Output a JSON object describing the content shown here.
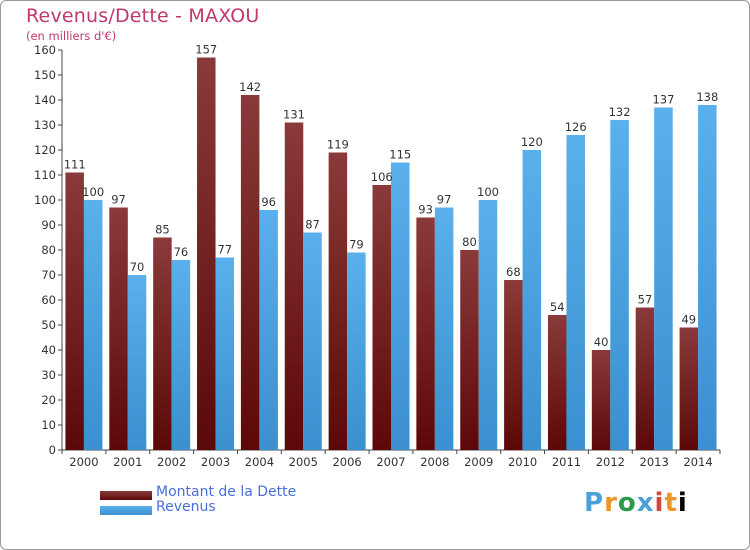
{
  "header": {
    "title": "Revenus/Dette - MAXOU",
    "subtitle": "(en milliers d'€)"
  },
  "legend": {
    "items": [
      {
        "label": "Montant de la Dette",
        "color": "#6b1010"
      },
      {
        "label": "Revenus",
        "color": "#4aa3e4"
      }
    ]
  },
  "logo": {
    "text": "Proxiti"
  },
  "colors": {
    "debt_top": "#8a3a3a",
    "debt_bottom": "#5c0808",
    "revenue_top": "#5ab0ec",
    "revenue_bottom": "#3a90d0",
    "title": "#c0396a",
    "legend_text": "#4a6fdc"
  },
  "chart_data": {
    "type": "bar",
    "title": "Revenus/Dette - MAXOU",
    "subtitle": "(en milliers d'€)",
    "categories": [
      "2000",
      "2001",
      "2002",
      "2003",
      "2004",
      "2005",
      "2006",
      "2007",
      "2008",
      "2009",
      "2010",
      "2011",
      "2012",
      "2013",
      "2014"
    ],
    "series": [
      {
        "name": "Montant de la Dette",
        "values": [
          111,
          97,
          85,
          157,
          142,
          131,
          119,
          106,
          93,
          80,
          68,
          54,
          40,
          57,
          49
        ]
      },
      {
        "name": "Revenus",
        "values": [
          100,
          70,
          76,
          77,
          96,
          87,
          79,
          115,
          97,
          100,
          120,
          126,
          132,
          137,
          138
        ]
      }
    ],
    "ylim": [
      0,
      160
    ],
    "yticks": [
      0,
      10,
      20,
      30,
      40,
      50,
      60,
      70,
      80,
      90,
      100,
      110,
      120,
      130,
      140,
      150,
      160
    ],
    "grid": false,
    "legend_position": "bottom-left"
  }
}
